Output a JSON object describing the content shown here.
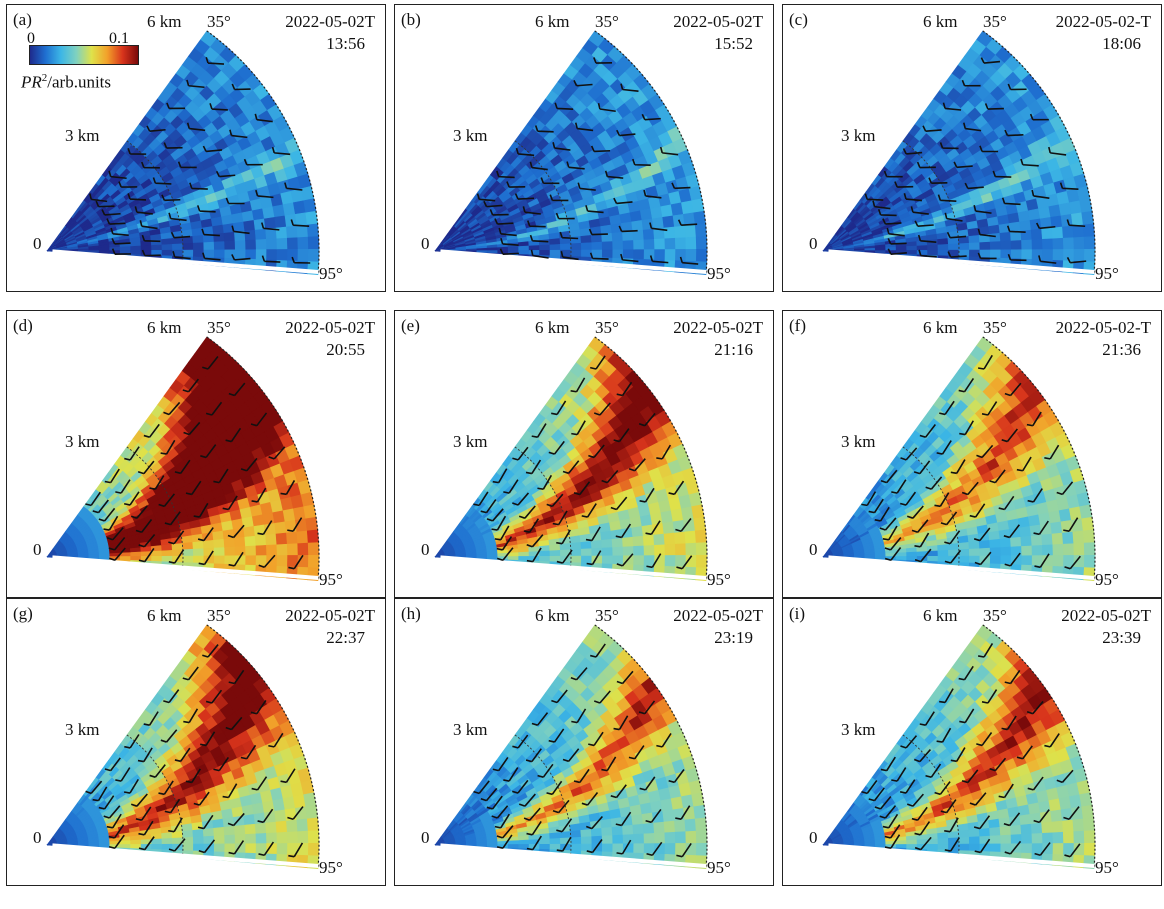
{
  "figure": {
    "range_outer_label": "6 km",
    "range_mid_label": "3 km",
    "range_zero_label": "0",
    "elevation_top_label": "35°",
    "elevation_bottom_label": "95°",
    "colorbar": {
      "min_label": "0",
      "max_label": "0.1",
      "unit_prefix": "PR",
      "unit_sup": "2",
      "unit_suffix": "/arb.units",
      "colors": [
        "#1e2a8c",
        "#1f6fd0",
        "#3cb6e6",
        "#7fd1c0",
        "#dfe24a",
        "#f2a12a",
        "#d8341c",
        "#7a0a0a"
      ]
    },
    "panels": [
      {
        "label": "(a)",
        "date": "2022-05-02T",
        "time": "13:56",
        "intensity": 0.2,
        "core": [
          0.55,
          0.72,
          0.03
        ],
        "colorbar": true
      },
      {
        "label": "(b)",
        "date": "2022-05-02T",
        "time": "15:52",
        "intensity": 0.22,
        "core": [
          0.5,
          0.88,
          0.02
        ],
        "colorbar": false
      },
      {
        "label": "(c)",
        "date": "2022-05-02-T",
        "time": "18:06",
        "intensity": 0.22,
        "core": [
          0.5,
          0.78,
          0.04
        ],
        "colorbar": false
      },
      {
        "label": "(d)",
        "date": "2022-05-02T",
        "time": "20:55",
        "intensity": 0.75,
        "core": [
          0.15,
          0.95,
          0.35
        ],
        "colorbar": false
      },
      {
        "label": "(e)",
        "date": "2022-05-02T",
        "time": "21:16",
        "intensity": 0.55,
        "core": [
          0.25,
          0.9,
          0.25
        ],
        "colorbar": false
      },
      {
        "label": "(f)",
        "date": "2022-05-02-T",
        "time": "21:36",
        "intensity": 0.45,
        "core": [
          0.25,
          0.85,
          0.25
        ],
        "colorbar": false
      },
      {
        "label": "(g)",
        "date": "2022-05-02T",
        "time": "22:37",
        "intensity": 0.55,
        "core": [
          0.2,
          0.95,
          0.3
        ],
        "colorbar": false
      },
      {
        "label": "(h)",
        "date": "2022-05-02T",
        "time": "23:19",
        "intensity": 0.45,
        "core": [
          0.3,
          0.9,
          0.18
        ],
        "colorbar": false
      },
      {
        "label": "(i)",
        "date": "2022-05-02T",
        "time": "23:39",
        "intensity": 0.48,
        "core": [
          0.3,
          0.9,
          0.22
        ],
        "colorbar": false
      }
    ]
  }
}
